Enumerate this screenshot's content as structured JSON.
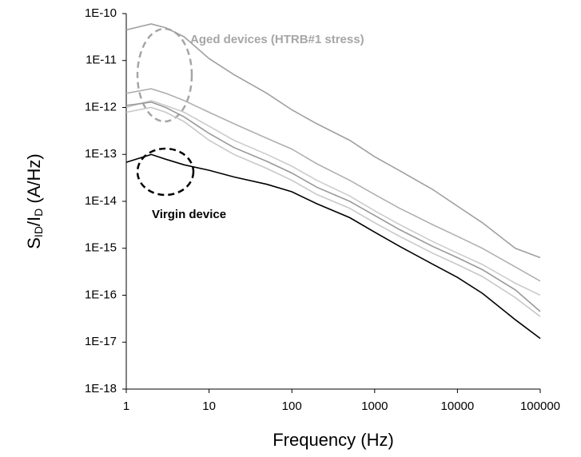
{
  "chart_data": {
    "type": "line",
    "xscale": "log",
    "yscale": "log",
    "xlabel": "Frequency (Hz)",
    "ylabel": [
      "S",
      "ID",
      "/I",
      "D",
      " (A/Hz)"
    ],
    "xlim": [
      1,
      100000
    ],
    "ylim": [
      1e-18,
      1e-10
    ],
    "xticks": [
      1,
      10,
      100,
      1000,
      10000,
      100000
    ],
    "yticks": [
      {
        "value": 1e-18,
        "label": "1E-18"
      },
      {
        "value": 1e-17,
        "label": "1E-17"
      },
      {
        "value": 1e-16,
        "label": "1E-16"
      },
      {
        "value": 1e-15,
        "label": "1E-15"
      },
      {
        "value": 1e-14,
        "label": "1E-14"
      },
      {
        "value": 1e-13,
        "label": "1E-13"
      },
      {
        "value": 1e-12,
        "label": "1E-12"
      },
      {
        "value": 1e-11,
        "label": "1E-11"
      },
      {
        "value": 1e-10,
        "label": "1E-10"
      }
    ],
    "annotations": [
      {
        "text": "Aged devices (HTRB#1 stress)",
        "color": "#a6a6a6"
      },
      {
        "text": "Virgin device",
        "color": "#000000"
      }
    ],
    "x": [
      1,
      2,
      3,
      5,
      10,
      20,
      50,
      100,
      200,
      500,
      1000,
      2000,
      5000,
      10000,
      20000,
      50000,
      100000
    ],
    "series": [
      {
        "color": "#a0a0a0",
        "values": [
          4.5e-11,
          6e-11,
          5e-11,
          3.2e-11,
          1.1e-11,
          5e-12,
          2e-12,
          8.9e-13,
          4.5e-13,
          2e-13,
          8.9e-14,
          4.5e-14,
          1.8e-14,
          7.9e-15,
          3.5e-15,
          1e-15,
          6.3e-16
        ]
      },
      {
        "color": "#b0b0b0",
        "values": [
          2e-12,
          2.5e-12,
          2e-12,
          1.4e-12,
          7.9e-13,
          4.5e-13,
          2.2e-13,
          1.3e-13,
          6.3e-14,
          2.8e-14,
          1.4e-14,
          7.1e-15,
          3.2e-15,
          1.8e-15,
          1e-15,
          4e-16,
          2e-16
        ]
      },
      {
        "color": "#cccccc",
        "values": [
          1e-12,
          1.4e-12,
          1.1e-12,
          7.9e-13,
          4e-13,
          2e-13,
          1e-13,
          5.6e-14,
          2.8e-14,
          1.3e-14,
          6.3e-15,
          3.2e-15,
          1.4e-15,
          7.9e-16,
          4.5e-16,
          1.8e-16,
          1e-16
        ]
      },
      {
        "color": "#999999",
        "values": [
          1.1e-12,
          1.3e-12,
          1e-12,
          6.3e-13,
          2.8e-13,
          1.4e-13,
          7.1e-14,
          4e-14,
          2e-14,
          1e-14,
          5e-15,
          2.5e-15,
          1.1e-15,
          6.3e-16,
          3.5e-16,
          1.3e-16,
          4.5e-17
        ]
      },
      {
        "color": "#c8c8c8",
        "values": [
          7.9e-13,
          1e-12,
          7.9e-13,
          5e-13,
          2e-13,
          1e-13,
          5e-14,
          2.8e-14,
          1.4e-14,
          7.1e-15,
          3.5e-15,
          1.8e-15,
          7.9e-16,
          4.5e-16,
          2.5e-16,
          8.9e-17,
          3.5e-17
        ]
      },
      {
        "color": "#000000",
        "values": [
          6.8e-14,
          1e-13,
          7.9e-14,
          6e-14,
          4.6e-14,
          3.3e-14,
          2.3e-14,
          1.6e-14,
          8.9e-15,
          4.5e-15,
          2.2e-15,
          1.1e-15,
          4.6e-16,
          2.4e-16,
          1.1e-16,
          3e-17,
          1.2e-17
        ]
      }
    ]
  }
}
